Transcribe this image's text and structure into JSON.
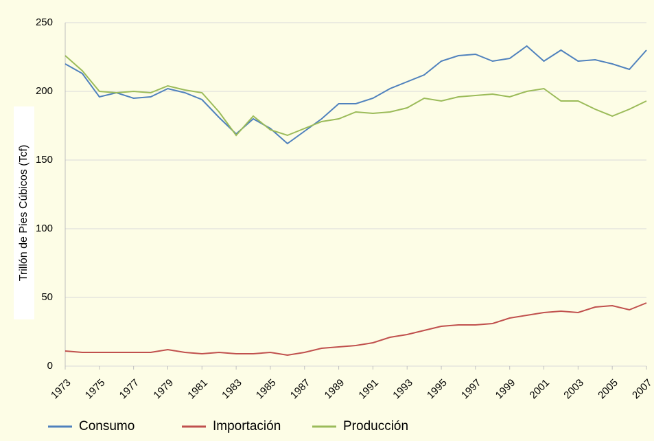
{
  "chart_data": {
    "type": "line",
    "ylabel": "Trillón de Pies Cúbicos (Tcf)",
    "x": [
      1973,
      1974,
      1975,
      1976,
      1977,
      1978,
      1979,
      1980,
      1981,
      1982,
      1983,
      1984,
      1985,
      1986,
      1987,
      1988,
      1989,
      1990,
      1991,
      1992,
      1993,
      1994,
      1995,
      1996,
      1997,
      1998,
      1999,
      2000,
      2001,
      2002,
      2003,
      2004,
      2005,
      2006,
      2007
    ],
    "xlim": [
      1973,
      2007
    ],
    "xticks": [
      1973,
      1975,
      1977,
      1979,
      1981,
      1983,
      1985,
      1987,
      1989,
      1991,
      1993,
      1995,
      1997,
      1999,
      2001,
      2003,
      2005,
      2007
    ],
    "ylim": [
      0,
      250
    ],
    "yticks": [
      0,
      50,
      100,
      150,
      200,
      250
    ],
    "grid": true,
    "legend": "bottom",
    "series": [
      {
        "name": "Consumo",
        "color": "#4f81bd",
        "values": [
          220,
          213,
          196,
          199,
          195,
          196,
          202,
          199,
          194,
          181,
          169,
          180,
          173,
          162,
          171,
          180,
          191,
          191,
          195,
          202,
          207,
          212,
          222,
          226,
          227,
          222,
          224,
          233,
          222,
          230,
          222,
          223,
          220,
          216,
          230
        ]
      },
      {
        "name": "Importación",
        "color": "#c0504d",
        "values": [
          11,
          10,
          10,
          10,
          10,
          10,
          12,
          10,
          9,
          10,
          9,
          9,
          10,
          8,
          10,
          13,
          14,
          15,
          17,
          21,
          23,
          26,
          29,
          30,
          30,
          31,
          35,
          37,
          39,
          40,
          39,
          43,
          44,
          41,
          46
        ]
      },
      {
        "name": "Producción",
        "color": "#9bbb59",
        "values": [
          226,
          215,
          200,
          199,
          200,
          199,
          204,
          201,
          199,
          185,
          168,
          182,
          172,
          168,
          173,
          178,
          180,
          185,
          184,
          185,
          188,
          195,
          193,
          196,
          197,
          198,
          196,
          200,
          202,
          193,
          193,
          187,
          182,
          187,
          193
        ]
      }
    ]
  }
}
